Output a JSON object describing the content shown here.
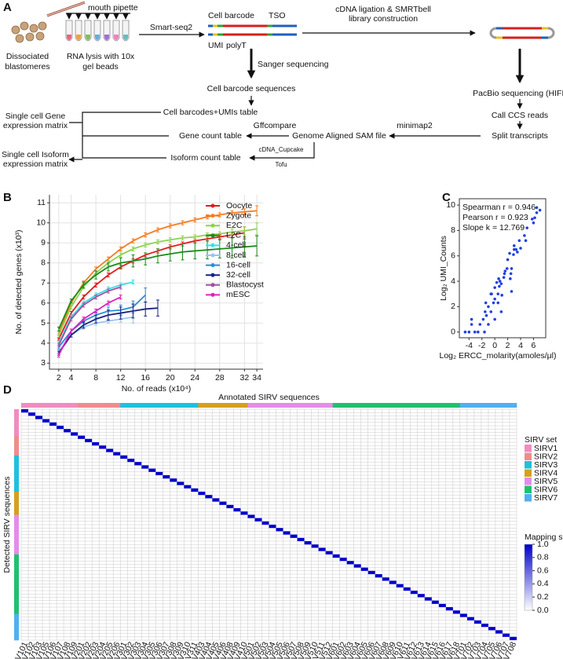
{
  "panel_labels": [
    "A",
    "B",
    "C",
    "D"
  ],
  "workflow": {
    "blastomeres": [
      "Dissociated",
      "blastomeres"
    ],
    "mouth_pipette": "mouth pipette",
    "lysis": [
      "RNA lysis with 10x",
      "gel beads"
    ],
    "smartseq": "Smart-seq2",
    "cell_barcode": "Cell barcode",
    "tso": "TSO",
    "umi": "UMI",
    "polyt": "polyT",
    "ligation": [
      "cDNA ligation & SMRTbell",
      "library construction"
    ],
    "sanger": "Sanger sequencing",
    "pacbio": "PacBio sequencing (HIFI)",
    "barcode_seqs": "Cell barcode sequences",
    "ccs": "Call CCS reads",
    "umi_table": "Cell barcodes+UMIs table",
    "gene_matrix": [
      "Single cell Gene",
      "expression matrix"
    ],
    "gene_count": "Gene count table",
    "gffcompare": "Gffcompare",
    "minimap2": "minimap2",
    "sam": "Genome Aligned SAM file",
    "split": "Split transcripts",
    "isoform_matrix": [
      "Single cell Isoform",
      "expression matrix"
    ],
    "isoform_count": "Isoform count table",
    "cupcake": "cDNA_Cupcake",
    "tofu": "Tofu"
  },
  "chart_data": [
    {
      "type": "line",
      "xlabel": "No. of reads (x10⁴)",
      "ylabel": "No. of detected genes (x10³)",
      "grid": true,
      "x": [
        2,
        4,
        6,
        8,
        10,
        12,
        14,
        16,
        18,
        20,
        22,
        24,
        26,
        28,
        30,
        32,
        34
      ],
      "xlim": [
        0.5,
        35
      ],
      "xticks": [
        2,
        4,
        8,
        12,
        16,
        20,
        24,
        28,
        32,
        34
      ],
      "ylim": [
        2.7,
        11.4
      ],
      "yticks": [
        3,
        4,
        5,
        6,
        7,
        8,
        9,
        10,
        11
      ],
      "series": [
        {
          "name": "Oocyte",
          "color": "#e41a1c",
          "values": [
            4.2,
            5.5,
            6.3,
            6.9,
            7.4,
            7.8,
            8.1,
            8.4,
            8.6,
            8.8,
            8.95,
            9.1,
            9.2,
            9.3,
            9.4,
            9.5,
            null
          ],
          "errors": [
            0.05,
            0.08,
            0.1,
            0.1,
            0.1,
            0.1,
            0.1,
            0.1,
            0.1,
            0.1,
            0.1,
            0.1,
            0.1,
            0.1,
            0.15,
            0.3,
            null
          ]
        },
        {
          "name": "Zygote",
          "color": "#f47c20",
          "values": [
            4.5,
            6.0,
            7.0,
            7.7,
            8.2,
            8.7,
            9.1,
            9.4,
            9.65,
            9.85,
            10.0,
            10.15,
            10.3,
            10.4,
            10.5,
            10.55,
            10.6
          ],
          "errors": [
            0.1,
            0.1,
            0.1,
            0.1,
            0.1,
            0.1,
            0.1,
            0.1,
            0.1,
            0.1,
            0.1,
            0.1,
            0.1,
            0.1,
            0.1,
            0.15,
            0.25
          ]
        },
        {
          "name": "E2C",
          "color": "#8fd14f",
          "values": [
            4.4,
            5.8,
            6.8,
            7.5,
            8.0,
            8.4,
            8.7,
            8.9,
            9.05,
            9.15,
            9.25,
            9.3,
            9.4,
            9.45,
            9.55,
            9.6,
            9.7
          ],
          "errors": [
            0.1,
            0.1,
            0.1,
            0.1,
            0.1,
            0.1,
            0.1,
            0.1,
            0.1,
            0.1,
            0.1,
            0.1,
            0.1,
            0.1,
            0.15,
            0.2,
            0.3
          ]
        },
        {
          "name": "L2C",
          "color": "#1a8a1a",
          "values": [
            4.7,
            6.1,
            6.9,
            7.4,
            7.8,
            8.0,
            8.1,
            8.2,
            8.35,
            8.45,
            8.55,
            8.6,
            8.65,
            8.7,
            8.75,
            8.8,
            8.85
          ],
          "errors": [
            0.1,
            0.1,
            0.15,
            0.2,
            0.2,
            0.25,
            0.3,
            0.3,
            0.35,
            0.35,
            0.4,
            0.4,
            0.45,
            0.45,
            0.5,
            0.5,
            0.5
          ]
        },
        {
          "name": "4-cell",
          "color": "#36e0e8",
          "values": [
            4.0,
            5.3,
            6.0,
            6.4,
            6.7,
            6.9,
            7.05,
            null,
            null,
            null,
            null,
            null,
            null,
            null,
            null,
            null,
            null
          ],
          "errors": [
            0.1,
            0.1,
            0.1,
            0.1,
            0.1,
            0.1,
            0.1,
            null,
            null,
            null,
            null,
            null,
            null,
            null,
            null,
            null,
            null
          ]
        },
        {
          "name": "8-cell",
          "color": "#9ec3f0",
          "values": [
            3.6,
            4.4,
            4.8,
            5.0,
            5.1,
            5.2,
            5.3,
            null,
            null,
            null,
            null,
            null,
            null,
            null,
            null,
            null,
            null
          ],
          "errors": [
            0.1,
            0.1,
            0.1,
            0.1,
            0.1,
            0.15,
            0.3,
            null,
            null,
            null,
            null,
            null,
            null,
            null,
            null,
            null,
            null
          ]
        },
        {
          "name": "16-cell",
          "color": "#2b8cd6",
          "values": [
            3.8,
            4.6,
            5.1,
            5.4,
            5.6,
            5.65,
            5.8,
            6.4,
            null,
            null,
            null,
            null,
            null,
            null,
            null,
            null,
            null
          ],
          "errors": [
            0.1,
            0.1,
            0.1,
            0.15,
            0.2,
            0.25,
            0.3,
            0.35,
            null,
            null,
            null,
            null,
            null,
            null,
            null,
            null,
            null
          ]
        },
        {
          "name": "32-cell",
          "color": "#1a237e",
          "values": [
            3.5,
            4.4,
            4.9,
            5.2,
            5.4,
            5.5,
            5.6,
            5.7,
            5.75,
            null,
            null,
            null,
            null,
            null,
            null,
            null,
            null
          ],
          "errors": [
            0.1,
            0.1,
            0.15,
            0.2,
            0.25,
            0.3,
            0.35,
            0.35,
            0.4,
            null,
            null,
            null,
            null,
            null,
            null,
            null,
            null
          ]
        },
        {
          "name": "Blastocyst",
          "color": "#a050a0",
          "values": [
            3.9,
            5.2,
            5.9,
            6.3,
            6.6,
            6.8,
            null,
            null,
            null,
            null,
            null,
            null,
            null,
            null,
            null,
            null,
            null
          ],
          "errors": [
            0.1,
            0.1,
            0.1,
            0.1,
            0.1,
            0.1,
            null,
            null,
            null,
            null,
            null,
            null,
            null,
            null,
            null,
            null,
            null
          ]
        },
        {
          "name": "mESC",
          "color": "#e020c0",
          "values": [
            3.4,
            4.6,
            5.2,
            5.6,
            6.0,
            6.3,
            null,
            null,
            null,
            null,
            null,
            null,
            null,
            null,
            null,
            null,
            null
          ],
          "errors": [
            0.1,
            0.1,
            0.1,
            0.1,
            0.1,
            0.1,
            null,
            null,
            null,
            null,
            null,
            null,
            null,
            null,
            null,
            null,
            null
          ]
        }
      ]
    },
    {
      "type": "scatter",
      "xlabel": "Log₂ ERCC_molarity(amoles/μl)",
      "ylabel": "Log₂ UMI_Counts",
      "color": "#2040e0",
      "annotations": [
        "Spearman r = 0.946",
        "Pearson r =  0.923",
        "Slope k =  12.769"
      ],
      "xlim": [
        -5.5,
        7.9
      ],
      "xticks": [
        -4,
        -2,
        0,
        2,
        4,
        6
      ],
      "ylim": [
        -0.45,
        10.5
      ],
      "yticks": [
        0,
        2,
        4,
        6,
        8,
        10
      ],
      "x": [
        -4.6,
        -4,
        -3.6,
        -3.6,
        -3.1,
        -2.6,
        -2.3,
        -1.8,
        -1.6,
        -1.5,
        -1.4,
        -1.3,
        -1,
        -1,
        -0.6,
        -0.6,
        -0.5,
        -0.2,
        0,
        0,
        0,
        0.3,
        0.5,
        0.5,
        0.6,
        0.7,
        0.8,
        1,
        1,
        1.1,
        1.4,
        1.5,
        1.6,
        1.9,
        2,
        2.3,
        2.4,
        2.5,
        2.6,
        2.6,
        2.9,
        3,
        3,
        3.3,
        3.5,
        3.8,
        4,
        4.6,
        4.8,
        5,
        5.8,
        6,
        6.2,
        6.5,
        6.5,
        7
      ],
      "y": [
        0,
        0,
        0.6,
        1,
        0,
        0,
        0.6,
        1,
        0,
        1.6,
        2.3,
        1.3,
        0.6,
        2,
        3,
        1.6,
        3,
        2.3,
        2.6,
        3.5,
        1,
        3.9,
        3,
        2.3,
        4.2,
        3.6,
        4,
        3.8,
        1.6,
        2.9,
        4.3,
        4.6,
        4.8,
        5,
        5.7,
        6.2,
        4.2,
        4.6,
        5,
        3.2,
        6.1,
        6.5,
        6.8,
        6.5,
        6.3,
        7.2,
        6.6,
        7.6,
        7.2,
        8.2,
        8.9,
        8.6,
        9,
        9.8,
        9.4,
        9.6
      ]
    },
    {
      "type": "heatmap",
      "title": "Annotated SIRV sequences",
      "ylabel": "Detected SIRV sequences",
      "legend_title": "SIRV set",
      "color": "#0000cc",
      "groups": [
        {
          "name": "SIRV1",
          "color": "#f08cc0",
          "members": [
            "SIRV101",
            "SIRV102",
            "SIRV103",
            "SIRV105",
            "SIRV106",
            "SIRV107",
            "SIRV108",
            "SIRV109"
          ]
        },
        {
          "name": "SIRV2",
          "color": "#f08c8c",
          "members": [
            "SIRV201",
            "SIRV202",
            "SIRV203",
            "SIRV204",
            "SIRV205",
            "SIRV206"
          ]
        },
        {
          "name": "SIRV3",
          "color": "#1ec0e0",
          "members": [
            "SIRV301",
            "SIRV302",
            "SIRV303",
            "SIRV304",
            "SIRV305",
            "SIRV306",
            "SIRV307",
            "SIRV308",
            "SIRV309",
            "SIRV310",
            "SIRV311"
          ]
        },
        {
          "name": "SIRV4",
          "color": "#d4a020",
          "members": [
            "SIRV403",
            "SIRV404",
            "SIRV405",
            "SIRV406",
            "SIRV408",
            "SIRV409",
            "SIRV410"
          ]
        },
        {
          "name": "SIRV5",
          "color": "#e48ce8",
          "members": [
            "SIRV501",
            "SIRV502",
            "SIRV503",
            "SIRV504",
            "SIRV505",
            "SIRV506",
            "SIRV507",
            "SIRV508",
            "SIRV509",
            "SIRV510",
            "SIRV511",
            "SIRV512"
          ]
        },
        {
          "name": "SIRV6",
          "color": "#20c070",
          "members": [
            "SIRV601",
            "SIRV602",
            "SIRV603",
            "SIRV604",
            "SIRV605",
            "SIRV606",
            "SIRV607",
            "SIRV608",
            "SIRV609",
            "SIRV610",
            "SIRV611",
            "SIRV612",
            "SIRV613",
            "SIRV614",
            "SIRV615",
            "SIRV616",
            "SIRV617",
            "SIRV618"
          ]
        },
        {
          "name": "SIRV7",
          "color": "#50b0f0",
          "members": [
            "SIRV701",
            "SIRV702",
            "SIRV703",
            "SIRV704",
            "SIRV705",
            "SIRV706",
            "SIRV707",
            "SIRV708"
          ]
        }
      ],
      "scores": [
        1,
        1,
        1,
        1,
        1,
        1,
        1,
        1,
        1,
        1,
        1,
        1,
        1,
        1,
        1,
        1,
        1,
        1,
        1,
        1,
        1,
        1,
        1,
        1,
        1,
        1,
        1,
        1,
        1,
        1,
        1,
        1,
        1,
        1,
        1,
        1,
        1,
        1,
        1,
        1,
        1,
        1,
        1,
        1,
        1,
        1,
        1,
        1,
        1,
        1,
        1,
        1,
        1,
        1,
        1,
        1,
        1,
        1,
        1,
        1,
        1,
        1,
        1,
        1,
        1,
        1,
        1,
        1,
        1,
        1
      ],
      "colorbar": {
        "title": "Mapping score",
        "ticks": [
          {
            "value": 1,
            "label": "1.0"
          },
          {
            "value": 0.8,
            "label": "0.8"
          },
          {
            "value": 0.6,
            "label": "0.6"
          },
          {
            "value": 0.4,
            "label": "0.4"
          },
          {
            "value": 0.2,
            "label": "0.2"
          },
          {
            "value": 0,
            "label": "0.0"
          }
        ]
      }
    }
  ]
}
